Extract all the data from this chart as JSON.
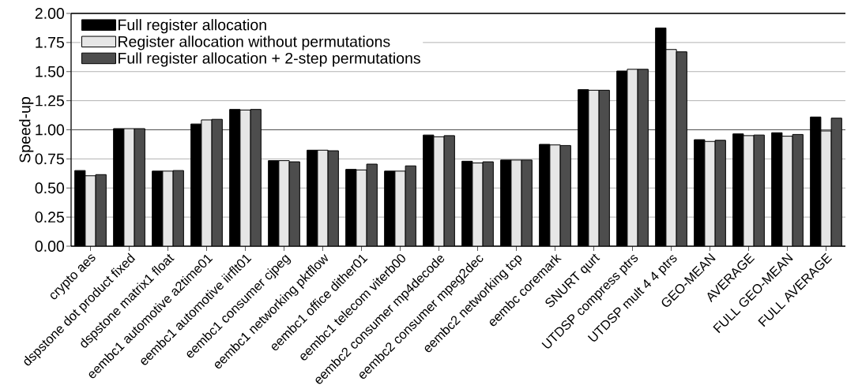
{
  "chart_data": {
    "type": "bar",
    "ylabel": "Speed-up",
    "categories": [
      "crypto aes",
      "dspstone dot product fixed",
      "dspstone matrix1 float",
      "eembc1 automotive a2time01",
      "eembc1 automotive iirflt01",
      "eembc1 consumer cjpeg",
      "eembc1 networking pktflow",
      "eembc1 office dither01",
      "eembc1 telecom viterb00",
      "eembc2 consumer mp4decode",
      "eembc2 consumer mpeg2dec",
      "eembc2 networking tcp",
      "eembc coremark",
      "SNURT qurt",
      "UTDSP compress ptrs",
      "UTDSP mult 4 4 ptrs",
      "GEO-MEAN",
      "AVERAGE",
      "FULL GEO-MEAN",
      "FULL AVERAGE"
    ],
    "series": [
      {
        "name": "Full register allocation",
        "color": "#000000",
        "values": [
          0.65,
          1.01,
          0.645,
          1.05,
          1.175,
          0.735,
          0.825,
          0.66,
          0.645,
          0.955,
          0.73,
          0.74,
          0.875,
          1.345,
          1.505,
          1.875,
          0.915,
          0.965,
          0.975,
          1.11
        ]
      },
      {
        "name": "Register allocation without permutations",
        "color": "#e6e6e6",
        "values": [
          0.605,
          1.01,
          0.645,
          1.085,
          1.17,
          0.735,
          0.825,
          0.655,
          0.645,
          0.94,
          0.715,
          0.74,
          0.87,
          1.34,
          1.52,
          1.69,
          0.9,
          0.95,
          0.945,
          0.99
        ]
      },
      {
        "name": "Full register allocation + 2-step permutations",
        "color": "#4d4d4d",
        "values": [
          0.615,
          1.01,
          0.65,
          1.09,
          1.175,
          0.725,
          0.82,
          0.705,
          0.69,
          0.95,
          0.725,
          0.74,
          0.865,
          1.34,
          1.52,
          1.67,
          0.91,
          0.955,
          0.96,
          1.1
        ]
      }
    ],
    "ylim": [
      0,
      2
    ],
    "yticks": [
      {
        "value": 0,
        "label": "0.00"
      },
      0.25,
      {
        "value": 0.5,
        "label": "0.50"
      },
      0.75,
      {
        "value": 1,
        "label": "1.00"
      },
      1.25,
      {
        "value": 1.5,
        "label": "1.50"
      },
      1.75,
      {
        "value": 2,
        "label": "2.00"
      }
    ],
    "ref_lines": [
      {
        "axis": "y",
        "value": 1,
        "color": "#505050"
      }
    ],
    "grid": "y",
    "legend": "top left"
  }
}
